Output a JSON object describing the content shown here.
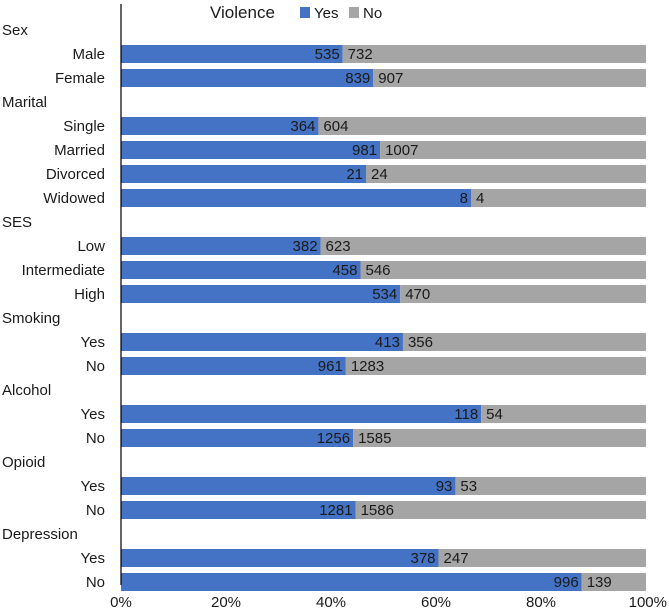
{
  "chart_data": {
    "type": "bar",
    "stacked": "percent",
    "orientation": "horizontal",
    "legend": {
      "title": "Violence",
      "position": "top-center"
    },
    "series": [
      {
        "name": "Yes",
        "color": "#4472C4"
      },
      {
        "name": "No",
        "color": "#A5A5A5"
      }
    ],
    "x_axis": {
      "min": 0,
      "max": 100,
      "ticks": [
        "0%",
        "20%",
        "40%",
        "60%",
        "80%",
        "100%"
      ]
    },
    "rows": [
      {
        "kind": "group",
        "label": "Sex"
      },
      {
        "kind": "bar",
        "label": "Male",
        "yes": 535,
        "no": 732
      },
      {
        "kind": "bar",
        "label": "Female",
        "yes": 839,
        "no": 907
      },
      {
        "kind": "group",
        "label": "Marital"
      },
      {
        "kind": "bar",
        "label": "Single",
        "yes": 364,
        "no": 604
      },
      {
        "kind": "bar",
        "label": "Married",
        "yes": 981,
        "no": 1007
      },
      {
        "kind": "bar",
        "label": "Divorced",
        "yes": 21,
        "no": 24
      },
      {
        "kind": "bar",
        "label": "Widowed",
        "yes": 8,
        "no": 4
      },
      {
        "kind": "group",
        "label": "SES"
      },
      {
        "kind": "bar",
        "label": "Low",
        "yes": 382,
        "no": 623
      },
      {
        "kind": "bar",
        "label": "Intermediate",
        "yes": 458,
        "no": 546
      },
      {
        "kind": "bar",
        "label": "High",
        "yes": 534,
        "no": 470
      },
      {
        "kind": "group",
        "label": "Smoking"
      },
      {
        "kind": "bar",
        "label": "Yes",
        "yes": 413,
        "no": 356
      },
      {
        "kind": "bar",
        "label": "No",
        "yes": 961,
        "no": 1283
      },
      {
        "kind": "group",
        "label": "Alcohol"
      },
      {
        "kind": "bar",
        "label": "Yes",
        "yes": 118,
        "no": 54
      },
      {
        "kind": "bar",
        "label": "No",
        "yes": 1256,
        "no": 1585
      },
      {
        "kind": "group",
        "label": "Opioid"
      },
      {
        "kind": "bar",
        "label": "Yes",
        "yes": 93,
        "no": 53
      },
      {
        "kind": "bar",
        "label": "No",
        "yes": 1281,
        "no": 1586
      },
      {
        "kind": "group",
        "label": "Depression"
      },
      {
        "kind": "bar",
        "label": "Yes",
        "yes": 378,
        "no": 247
      },
      {
        "kind": "bar",
        "label": "No",
        "yes": 996,
        "no": 139
      }
    ]
  }
}
